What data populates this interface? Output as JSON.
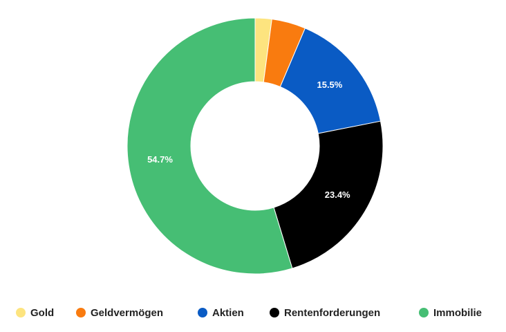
{
  "chart_data": {
    "type": "donut",
    "categories": [
      "Gold",
      "Geldvermögen",
      "Aktien",
      "Rentenforderungen",
      "Immobilie"
    ],
    "values": [
      2.1,
      4.3,
      15.5,
      23.4,
      54.7
    ],
    "value_labels": [
      null,
      null,
      "15.5%",
      "23.4%",
      "54.7%"
    ],
    "colors": [
      "#fde47f",
      "#f97b0f",
      "#0a5bc4",
      "#000000",
      "#46be74"
    ],
    "legend": "bottom"
  }
}
